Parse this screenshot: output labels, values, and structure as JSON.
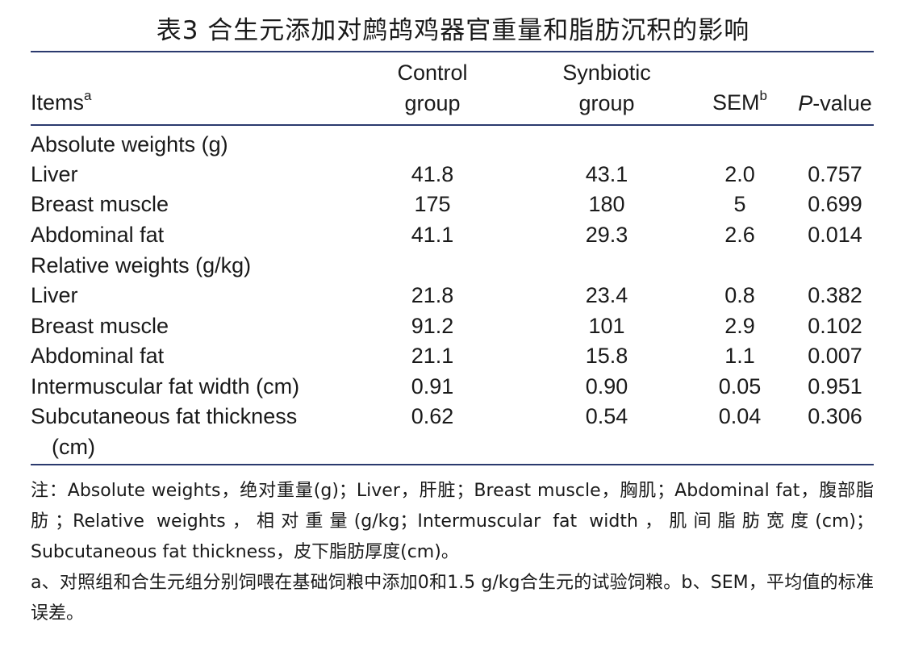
{
  "title": "表3 合生元添加对鹧鸪鸡器官重量和脂肪沉积的影响",
  "header": {
    "items": "Items",
    "items_sup": "a",
    "control_l1": "Control",
    "control_l2": "group",
    "synbiotic_l1": "Synbiotic",
    "synbiotic_l2": "group",
    "sem": "SEM",
    "sem_sup": "b",
    "p_italic": "P",
    "p_rest": "-value"
  },
  "sections": {
    "absolute": "Absolute weights (g)",
    "relative": "Relative weights (g/kg)"
  },
  "rows": [
    {
      "item": "Liver",
      "control": "41.8",
      "synbiotic": "43.1",
      "sem": "2.0",
      "p": "0.757"
    },
    {
      "item": "Breast muscle",
      "control": "175",
      "synbiotic": "180",
      "sem": "5",
      "p": "0.699"
    },
    {
      "item": "Abdominal fat",
      "control": "41.1",
      "synbiotic": "29.3",
      "sem": "2.6",
      "p": "0.014"
    },
    {
      "item": "Liver",
      "control": "21.8",
      "synbiotic": "23.4",
      "sem": "0.8",
      "p": "0.382"
    },
    {
      "item": "Breast muscle",
      "control": "91.2",
      "synbiotic": "101",
      "sem": "2.9",
      "p": "0.102"
    },
    {
      "item": "Abdominal fat",
      "control": "21.1",
      "synbiotic": "15.8",
      "sem": "1.1",
      "p": "0.007"
    },
    {
      "item": "Intermuscular fat width (cm)",
      "control": "0.91",
      "synbiotic": "0.90",
      "sem": "0.05",
      "p": "0.951"
    },
    {
      "item": "Subcutaneous fat thickness",
      "item_cont": "(cm)",
      "control": "0.62",
      "synbiotic": "0.54",
      "sem": "0.04",
      "p": "0.306"
    }
  ],
  "notes": {
    "line1": "注：Absolute weights，绝对重量(g)；Liver，肝脏；Breast muscle，胸肌；Abdominal fat，腹部脂肪；Relative weights，相对重量(g/kg；Intermuscular fat width，肌间脂肪宽度(cm)；Subcutaneous fat thickness，皮下脂肪厚度(cm)。",
    "line2": "a、对照组和合生元组分别饲喂在基础饲粮中添加0和1.5 g/kg合生元的试验饲粮。b、SEM，平均值的标准误差。"
  }
}
